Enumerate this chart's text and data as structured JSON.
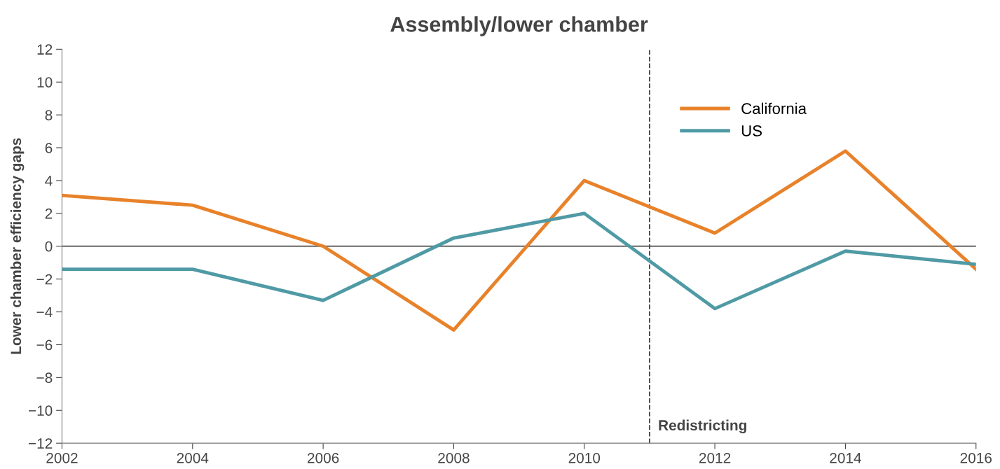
{
  "chart_data": {
    "type": "line",
    "title": "Assembly/lower chamber",
    "ylabel": "Lower chamber efficiency gaps",
    "x": [
      2002,
      2004,
      2006,
      2008,
      2010,
      2012,
      2014,
      2016
    ],
    "series": [
      {
        "name": "California",
        "color": "#e8822a",
        "values": [
          3.1,
          2.5,
          0.0,
          -5.1,
          4.0,
          0.8,
          5.8,
          -1.4
        ]
      },
      {
        "name": "US",
        "color": "#4f9aa5",
        "values": [
          -1.4,
          -1.4,
          -3.3,
          0.5,
          2.0,
          -3.8,
          -0.3,
          -1.1
        ]
      }
    ],
    "xlim": [
      2002,
      2016
    ],
    "xticks": [
      2002,
      2004,
      2006,
      2008,
      2010,
      2012,
      2014,
      2016
    ],
    "ylim": [
      -12,
      12
    ],
    "yticks": [
      {
        "value": -12,
        "label": "−12"
      },
      {
        "value": -10,
        "label": "−10"
      },
      {
        "value": -8,
        "label": "−8"
      },
      {
        "value": -6,
        "label": "−6"
      },
      {
        "value": -4,
        "label": "−4"
      },
      {
        "value": -2,
        "label": "−2"
      },
      0,
      2,
      4,
      6,
      8,
      10,
      12
    ],
    "ref_lines": [
      {
        "axis": "y",
        "value": 0,
        "label": null,
        "color": "#666666",
        "line_style": "solid"
      },
      {
        "axis": "x",
        "value": 2011,
        "label": "Redistricting",
        "color": "#444444",
        "line_style": "dashed"
      }
    ],
    "grid": false,
    "legend": "top right",
    "marker": "none",
    "line_style": "solid"
  }
}
